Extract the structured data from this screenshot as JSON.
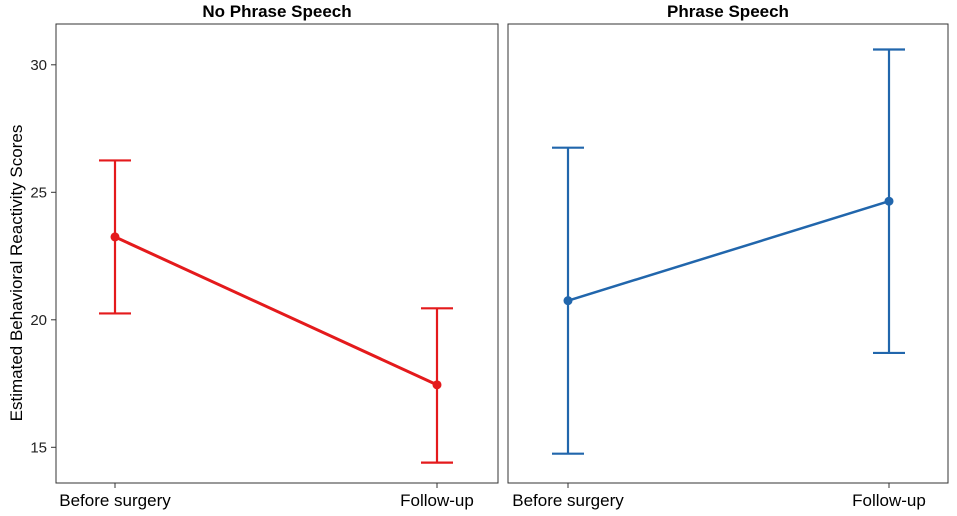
{
  "chart_data": {
    "type": "line",
    "ylabel": "Estimated Behavioral Reactivity Scores",
    "ylim": [
      13.6,
      31.6
    ],
    "yticks": [
      15,
      20,
      25,
      30
    ],
    "categories": [
      "Before surgery",
      "Follow-up"
    ],
    "grid": false,
    "panels": [
      {
        "title": "No Phrase Speech",
        "color": "#e41a1c",
        "points": [
          {
            "x": "Before surgery",
            "y": 23.25,
            "lower": 20.25,
            "upper": 26.25
          },
          {
            "x": "Follow-up",
            "y": 17.45,
            "lower": 14.4,
            "upper": 20.45
          }
        ]
      },
      {
        "title": "Phrase Speech",
        "color": "#2166ac",
        "points": [
          {
            "x": "Before surgery",
            "y": 20.75,
            "lower": 14.75,
            "upper": 26.75
          },
          {
            "x": "Follow-up",
            "y": 24.65,
            "lower": 18.7,
            "upper": 30.6
          }
        ]
      }
    ]
  }
}
